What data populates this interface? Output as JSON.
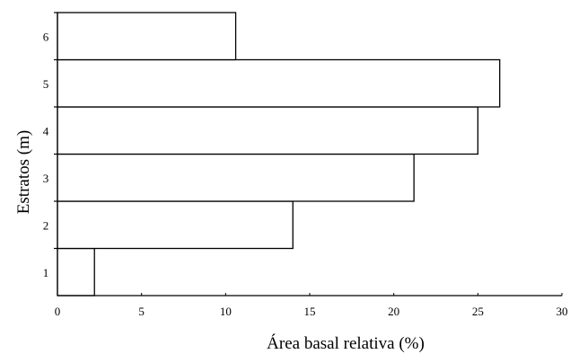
{
  "chart_data": {
    "type": "bar",
    "orientation": "horizontal",
    "title": "",
    "xlabel": "Área basal relativa (%)",
    "ylabel": "Estratos (m)",
    "categories": [
      "1",
      "2",
      "3",
      "4",
      "5",
      "6"
    ],
    "values": [
      2.2,
      14.0,
      21.2,
      25.0,
      26.3,
      10.6
    ],
    "xlim": [
      0,
      30
    ],
    "xticks": [
      "0",
      "5",
      "10",
      "15",
      "20",
      "25",
      "30"
    ],
    "grid": false,
    "legend": "none",
    "colors": {
      "bar_fill": "#ffffff",
      "bar_stroke": "#000000",
      "axis": "#000000"
    }
  }
}
